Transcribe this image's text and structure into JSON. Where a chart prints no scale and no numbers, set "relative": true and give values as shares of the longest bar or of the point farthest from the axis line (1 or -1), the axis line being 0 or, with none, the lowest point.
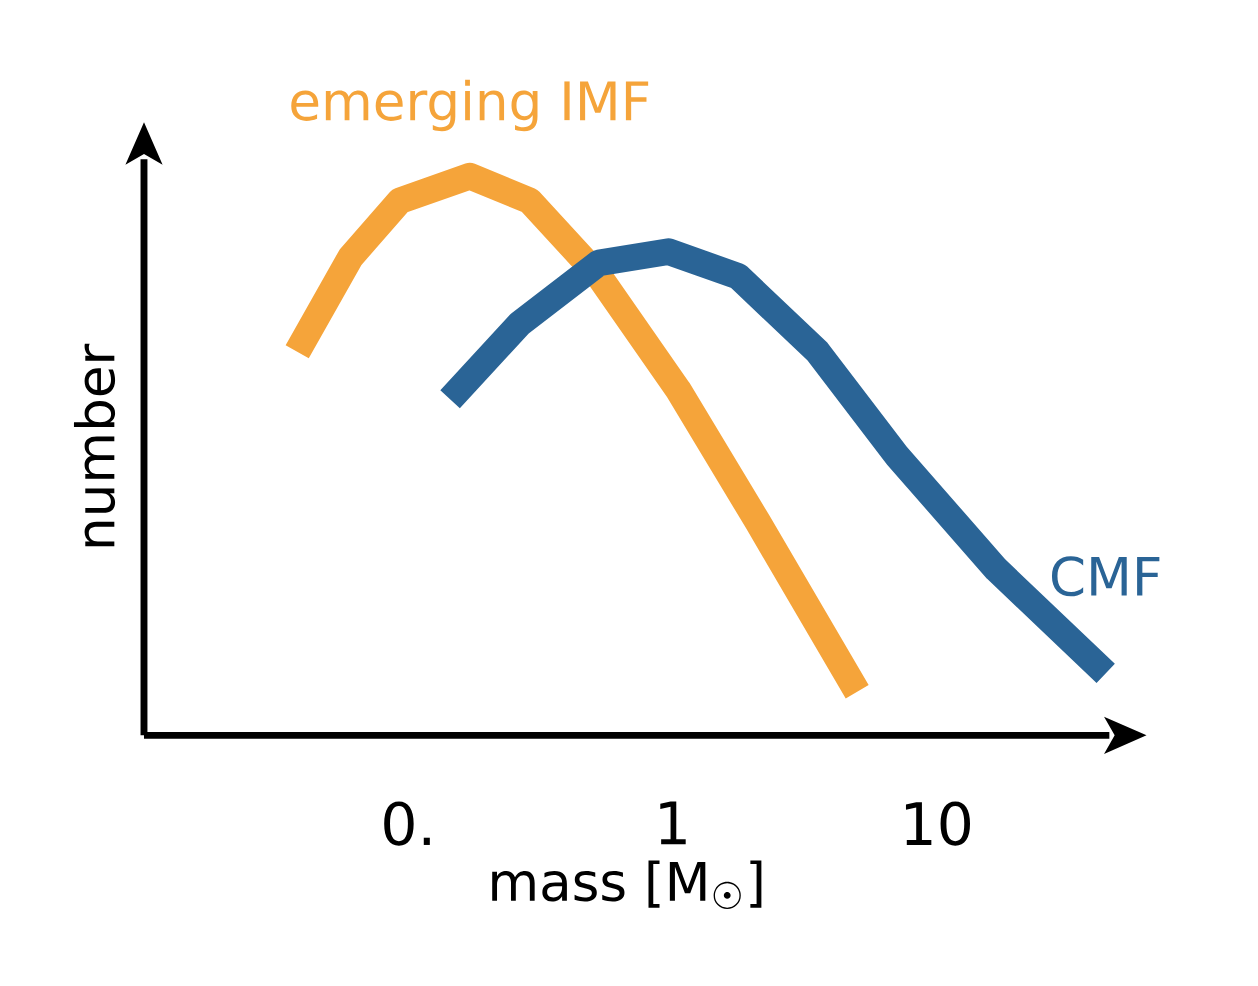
{
  "chart_data": {
    "type": "line",
    "relative": true,
    "log": "x",
    "xlabel": "mass [M$_{☉}$]",
    "ylabel": "number",
    "xlim": [
      0.01,
      45
    ],
    "xticks": [
      {
        "value": 0.1,
        "label": "0."
      },
      1,
      10
    ],
    "tick_labels": "x",
    "series": [
      {
        "name": "emerging IMF",
        "color": "#f5a43a",
        "x": [
          0.038,
          0.0605,
          0.093,
          0.171,
          0.288,
          0.527,
          1.05,
          2.1,
          5.0
        ],
        "values": [
          0.686,
          0.855,
          0.956,
          1.0,
          0.956,
          0.821,
          0.618,
          0.382,
          0.078
        ]
      },
      {
        "name": "CMF",
        "color": "#2a6496",
        "x": [
          0.144,
          0.264,
          0.527,
          0.966,
          1.77,
          3.54,
          7.07,
          16.8,
          43.6
        ],
        "values": [
          0.601,
          0.736,
          0.845,
          0.865,
          0.821,
          0.686,
          0.5,
          0.297,
          0.111
        ]
      }
    ]
  }
}
